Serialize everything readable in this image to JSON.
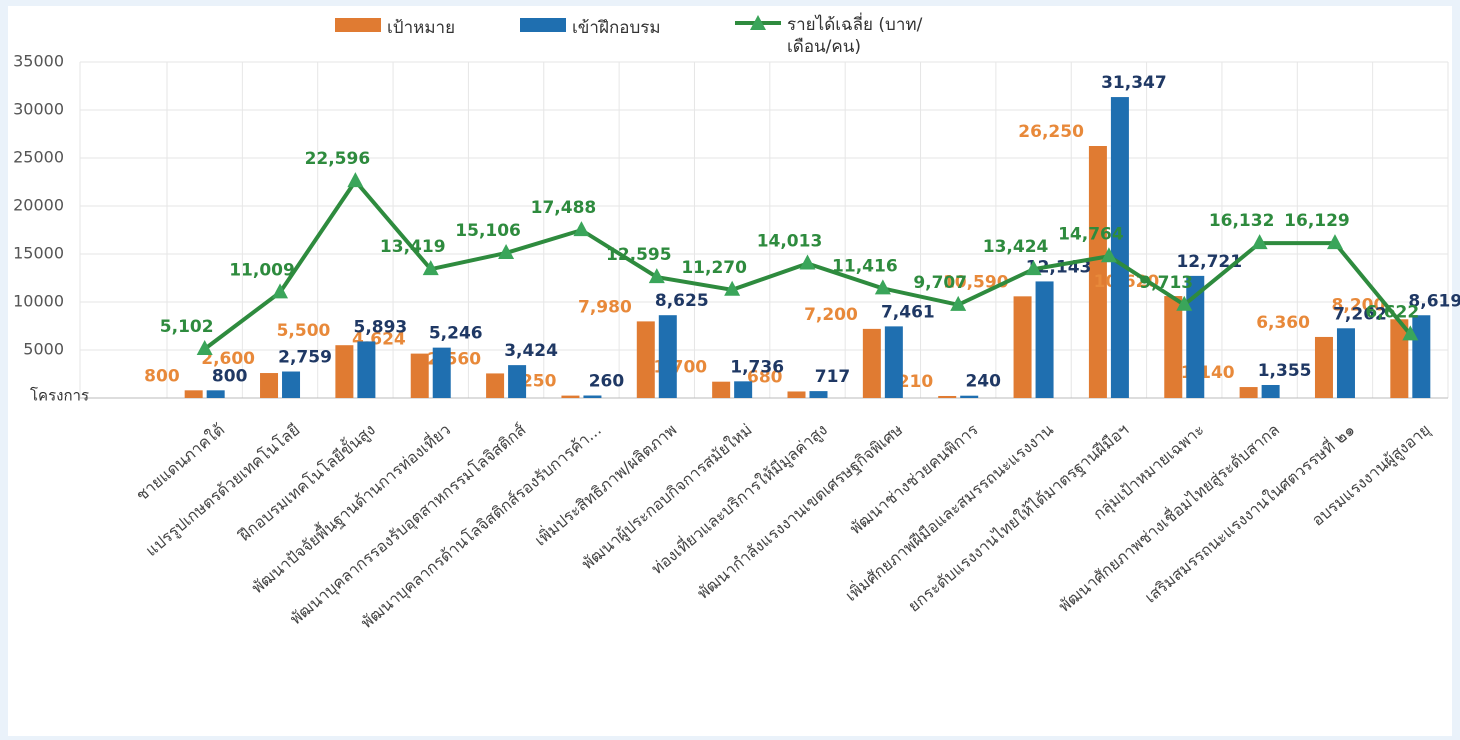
{
  "chart_data": {
    "type": "bar-line",
    "y_axis_label": "โครงการ",
    "categories": [
      "ชายแดนภาคใต้",
      "แปรรูปเกษตรด้วยเทคโนโลยี",
      "ฝึกอบรมเทคโนโลยีขั้นสูง",
      "พัฒนาปัจจัยพื้นฐานด้านการท่องเที่ยว",
      "พัฒนาบุคลากรรองรับอุตสาหกรรมโลจิสติกส์",
      "พัฒนาบุคลากรด้านโลจิสติกส์รองรับการค้า...",
      "เพิ่มประสิทธิภาพ/ผลิตภาพ",
      "พัฒนาผู้ประกอบกิจการสมัยใหม่",
      "ท่องเที่ยวและบริการให้มีมูลค่าสูง",
      "พัฒนากำลังแรงงานเขตเศรษฐกิจพิเศษ",
      "พัฒนาช่างช่วยคนพิการ",
      "เพิ่มศักยภาพฝีมือและสมรรถนะแรงงาน",
      "ยกระดับแรงงานไทยให้ได้มาตรฐานฝีมือฯ",
      "กลุ่มเป้าหมายเฉพาะ",
      "พัฒนาศักยภาพช่างเชื่อมไทยสู่ระดับสากล",
      "เสริมสมรรถนะแรงงานในศตวรรษที่ ๒๑",
      "อบรมแรงงานผู้สูงอายุ"
    ],
    "series": [
      {
        "name": "เป้าหมาย",
        "type": "bar",
        "color": "#e07b32",
        "label_color": "#e8893a",
        "values": [
          800,
          2600,
          5500,
          4624,
          2560,
          250,
          7980,
          1700,
          680,
          7200,
          210,
          10590,
          26250,
          10620,
          1140,
          6360,
          8200
        ],
        "value_labels": [
          "800",
          "2,600",
          "5,500",
          "4,624",
          "2,560",
          "250",
          "7,980",
          "1,700",
          "680",
          "7,200",
          "210",
          "10,590",
          "26,250",
          "10,620",
          "1,140",
          "6,360",
          "8,200"
        ]
      },
      {
        "name": "เข้าฝึกอบรม",
        "type": "bar",
        "color": "#1f6fb0",
        "label_color": "#1f3864",
        "values": [
          800,
          2759,
          5893,
          5246,
          3424,
          260,
          8625,
          1736,
          717,
          7461,
          240,
          12143,
          31347,
          12721,
          1355,
          7262,
          8619
        ],
        "value_labels": [
          "800",
          "2,759",
          "5,893",
          "5,246",
          "3,424",
          "260",
          "8,625",
          "1,736",
          "717",
          "7,461",
          "240",
          "12,143",
          "31,347",
          "12,721",
          "1,355",
          "7,262",
          "8,619"
        ]
      },
      {
        "name": "รายได้เฉลี่ย (บาท/เดือน/คน)",
        "type": "line",
        "color": "#2e8b3e",
        "label_color": "#2e8b3e",
        "values": [
          5102,
          11009,
          22596,
          13419,
          15106,
          17488,
          12595,
          11270,
          14013,
          11416,
          9707,
          13424,
          14764,
          9713,
          16132,
          16129,
          6622
        ],
        "value_labels": [
          "5,102",
          "11,009",
          "22,596",
          "13,419",
          "15,106",
          "17,488",
          "12,595",
          "11,270",
          "14,013",
          "11,416",
          "9,707",
          "13,424",
          "14,764",
          "9,713",
          "16,132",
          "16,129",
          "6,622"
        ]
      }
    ],
    "ylim": [
      0,
      35000
    ],
    "yticks": [
      5000,
      10000,
      15000,
      20000,
      25000,
      30000,
      35000
    ],
    "grid": true
  }
}
